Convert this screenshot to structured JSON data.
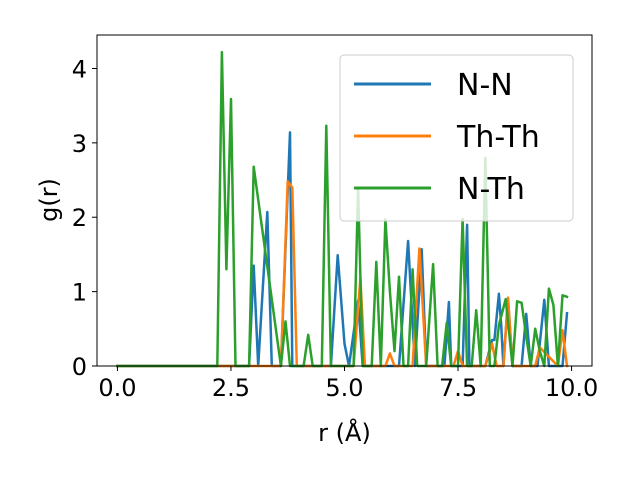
{
  "chart_data": {
    "type": "line",
    "xlabel": "r (Å)",
    "ylabel": "g(r)",
    "xlim": [
      -0.45,
      10.45
    ],
    "ylim": [
      0,
      4.45
    ],
    "xticks": [
      0.0,
      2.5,
      5.0,
      7.5,
      10.0
    ],
    "xtick_labels": [
      "0.0",
      "2.5",
      "5.0",
      "7.5",
      "10.0"
    ],
    "yticks": [
      0,
      1,
      2,
      3,
      4
    ],
    "ytick_labels": [
      "0",
      "1",
      "2",
      "3",
      "4"
    ],
    "grid": false,
    "legend_position": "top-right",
    "series": [
      {
        "name": "N-N",
        "color": "#1f77b4",
        "x": [
          0.0,
          2.2,
          2.9,
          3.0,
          3.1,
          3.3,
          3.4,
          3.5,
          3.6,
          3.8,
          3.85,
          3.95,
          4.5,
          4.7,
          4.85,
          5.0,
          5.1,
          5.3,
          5.4,
          5.5,
          5.7,
          6.0,
          6.2,
          6.4,
          6.55,
          6.7,
          6.8,
          6.9,
          7.2,
          7.3,
          7.35,
          7.45,
          7.6,
          7.7,
          7.75,
          7.85,
          8.0,
          8.1,
          8.25,
          8.3,
          8.4,
          8.45,
          8.5,
          8.6,
          8.7,
          8.9,
          9.0,
          9.1,
          9.2,
          9.25,
          9.4,
          9.5,
          9.6,
          9.7,
          9.8,
          9.9
        ],
        "y": [
          0.0,
          0.0,
          0.0,
          1.35,
          0.0,
          2.07,
          0.0,
          0.0,
          0.0,
          3.14,
          0.0,
          0.0,
          0.0,
          0.0,
          1.49,
          0.3,
          0.0,
          0.88,
          0.0,
          0.0,
          0.0,
          0.0,
          0.0,
          1.68,
          0.0,
          1.57,
          0.0,
          0.0,
          0.0,
          0.86,
          0.0,
          0.0,
          0.0,
          1.9,
          0.0,
          0.0,
          0.0,
          0.0,
          0.35,
          0.35,
          0.97,
          0.55,
          0.0,
          0.9,
          0.0,
          0.0,
          0.7,
          0.0,
          0.0,
          0.0,
          0.89,
          0.0,
          0.0,
          0.0,
          0.0,
          0.71
        ]
      },
      {
        "name": "Th-Th",
        "color": "#ff7f0e",
        "x": [
          0.0,
          3.6,
          3.75,
          3.85,
          3.95,
          5.2,
          5.35,
          5.45,
          5.9,
          6.0,
          6.1,
          6.5,
          6.65,
          6.8,
          7.4,
          7.5,
          7.6,
          8.1,
          8.25,
          8.35,
          8.5,
          8.6,
          8.7,
          9.2,
          9.3,
          9.7,
          9.8,
          9.9
        ],
        "y": [
          0.0,
          0.0,
          2.48,
          2.4,
          0.0,
          0.0,
          1.18,
          0.0,
          0.0,
          0.17,
          0.0,
          0.0,
          1.58,
          0.0,
          0.0,
          0.2,
          0.0,
          0.0,
          0.3,
          0.0,
          0.0,
          0.92,
          0.0,
          0.0,
          0.25,
          0.0,
          0.48,
          0.0
        ]
      },
      {
        "name": "N-Th",
        "color": "#2ca02c",
        "x": [
          0.0,
          2.2,
          2.3,
          2.4,
          2.5,
          2.6,
          2.9,
          3.0,
          3.6,
          3.7,
          3.8,
          3.9,
          4.1,
          4.2,
          4.3,
          4.5,
          4.6,
          4.7,
          5.2,
          5.3,
          5.4,
          5.6,
          5.7,
          5.8,
          5.9,
          6.0,
          6.1,
          6.2,
          6.3,
          6.4,
          6.5,
          6.6,
          6.8,
          6.95,
          7.05,
          7.15,
          7.25,
          7.35,
          7.5,
          7.6,
          7.7,
          7.8,
          7.9,
          8.0,
          8.1,
          8.2,
          8.3,
          8.4,
          8.55,
          8.7,
          8.8,
          8.9,
          9.0,
          9.1,
          9.2,
          9.3,
          9.4,
          9.5,
          9.6,
          9.7,
          9.8,
          9.9
        ],
        "y": [
          0.0,
          0.0,
          4.22,
          1.3,
          3.59,
          0.0,
          0.0,
          2.68,
          0.0,
          0.6,
          0.0,
          0.0,
          0.0,
          0.42,
          0.0,
          0.0,
          3.23,
          0.0,
          0.0,
          2.39,
          0.0,
          0.0,
          1.4,
          0.0,
          1.97,
          1.0,
          0.2,
          1.2,
          0.0,
          0.0,
          1.3,
          0.0,
          0.0,
          1.37,
          0.0,
          0.0,
          0.58,
          0.0,
          0.0,
          1.98,
          0.0,
          0.0,
          0.75,
          0.0,
          2.8,
          0.0,
          0.0,
          0.55,
          0.9,
          0.0,
          0.87,
          0.85,
          0.4,
          0.0,
          0.5,
          0.2,
          0.0,
          1.04,
          0.82,
          0.0,
          0.95,
          0.93
        ]
      }
    ]
  }
}
